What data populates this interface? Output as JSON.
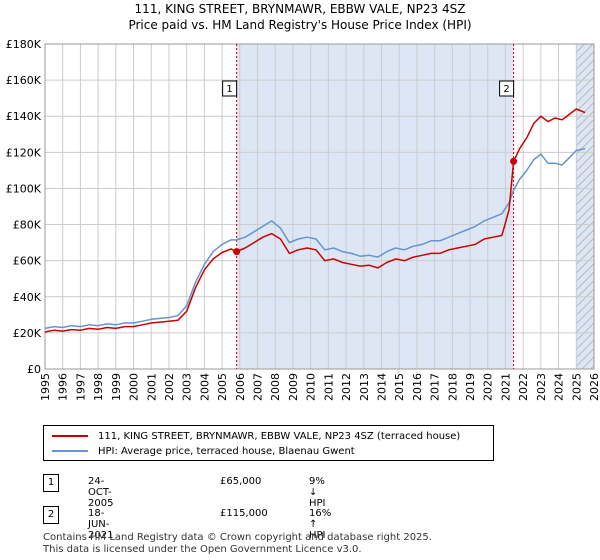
{
  "title_line1": "111, KING STREET, BRYNMAWR, EBBW VALE, NP23 4SZ",
  "title_line2": "Price paid vs. HM Land Registry's House Price Index (HPI)",
  "legend": {
    "series1_label": "111, KING STREET, BRYNMAWR, EBBW VALE, NP23 4SZ (terraced house)",
    "series2_label": "HPI: Average price, terraced house, Blaenau Gwent"
  },
  "sales": [
    {
      "num": "1",
      "date": "24-OCT-2005",
      "price": "£65,000",
      "hpi": "9% ↓ HPI"
    },
    {
      "num": "2",
      "date": "18-JUN-2021",
      "price": "£115,000",
      "hpi": "16% ↑ HPI"
    }
  ],
  "footer_line1": "Contains HM Land Registry data © Crown copyright and database right 2025.",
  "footer_line2": "This data is licensed under the Open Government Licence v3.0.",
  "colors": {
    "property": "#cc0000",
    "hpi": "#6495cd",
    "shade": "#dde6f4",
    "grid": "#cccccc"
  },
  "chart_data": {
    "type": "line",
    "title": "111, KING STREET, BRYNMAWR, EBBW VALE, NP23 4SZ — Price paid vs. HM Land Registry's House Price Index (HPI)",
    "xlabel": "",
    "ylabel": "",
    "xlim": [
      1995,
      2026
    ],
    "ylim": [
      0,
      180000
    ],
    "x_ticks": [
      1995,
      1996,
      1997,
      1998,
      1999,
      2000,
      2001,
      2002,
      2003,
      2004,
      2005,
      2006,
      2007,
      2008,
      2009,
      2010,
      2011,
      2012,
      2013,
      2014,
      2015,
      2016,
      2017,
      2018,
      2019,
      2020,
      2021,
      2022,
      2023,
      2024,
      2025,
      2026
    ],
    "y_ticks": [
      0,
      20000,
      40000,
      60000,
      80000,
      100000,
      120000,
      140000,
      160000,
      180000
    ],
    "y_tick_labels": [
      "£0",
      "£20K",
      "£40K",
      "£60K",
      "£80K",
      "£100K",
      "£120K",
      "£140K",
      "£160K",
      "£180K"
    ],
    "grid": true,
    "shaded_regions": [
      [
        2005.82,
        2021.46
      ],
      [
        2025.0,
        2026.0
      ]
    ],
    "hatched_region": [
      2025.0,
      2026.0
    ],
    "series": [
      {
        "name": "111, KING STREET, BRYNMAWR, EBBW VALE, NP23 4SZ (terraced house)",
        "x": [
          1995.0,
          1995.5,
          1996.0,
          1996.5,
          1997.0,
          1997.5,
          1998.0,
          1998.5,
          1999.0,
          1999.5,
          2000.0,
          2000.5,
          2001.0,
          2001.5,
          2002.0,
          2002.5,
          2003.0,
          2003.5,
          2004.0,
          2004.5,
          2005.0,
          2005.5,
          2005.82,
          2006.3,
          2006.8,
          2007.3,
          2007.8,
          2008.3,
          2008.8,
          2009.3,
          2009.8,
          2010.3,
          2010.8,
          2011.3,
          2011.8,
          2012.3,
          2012.8,
          2013.3,
          2013.8,
          2014.3,
          2014.8,
          2015.3,
          2015.8,
          2016.3,
          2016.8,
          2017.3,
          2017.8,
          2018.3,
          2018.8,
          2019.3,
          2019.8,
          2020.3,
          2020.8,
          2021.2,
          2021.46,
          2021.8,
          2022.2,
          2022.6,
          2023.0,
          2023.4,
          2023.8,
          2024.2,
          2024.6,
          2025.0,
          2025.5
        ],
        "values": [
          20500,
          21500,
          21000,
          21800,
          21500,
          22500,
          22000,
          23000,
          22500,
          23500,
          23500,
          24500,
          25500,
          26000,
          26500,
          27000,
          32000,
          45000,
          55000,
          61000,
          64500,
          66500,
          65000,
          67000,
          70000,
          73000,
          75000,
          72000,
          64000,
          66000,
          67000,
          66000,
          60000,
          61000,
          59000,
          58000,
          57000,
          57500,
          56000,
          59000,
          61000,
          60000,
          62000,
          63000,
          64000,
          64000,
          66000,
          67000,
          68000,
          69000,
          72000,
          73000,
          74000,
          88000,
          115000,
          122000,
          128000,
          136000,
          140000,
          137000,
          139000,
          138000,
          141000,
          144000,
          142000
        ]
      },
      {
        "name": "HPI: Average price, terraced house, Blaenau Gwent",
        "x": [
          1995.0,
          1995.5,
          1996.0,
          1996.5,
          1997.0,
          1997.5,
          1998.0,
          1998.5,
          1999.0,
          1999.5,
          2000.0,
          2000.5,
          2001.0,
          2001.5,
          2002.0,
          2002.5,
          2003.0,
          2003.5,
          2004.0,
          2004.5,
          2005.0,
          2005.5,
          2005.82,
          2006.3,
          2006.8,
          2007.3,
          2007.8,
          2008.3,
          2008.8,
          2009.3,
          2009.8,
          2010.3,
          2010.8,
          2011.3,
          2011.8,
          2012.3,
          2012.8,
          2013.3,
          2013.8,
          2014.3,
          2014.8,
          2015.3,
          2015.8,
          2016.3,
          2016.8,
          2017.3,
          2017.8,
          2018.3,
          2018.8,
          2019.3,
          2019.8,
          2020.3,
          2020.8,
          2021.2,
          2021.46,
          2021.8,
          2022.2,
          2022.6,
          2023.0,
          2023.4,
          2023.8,
          2024.2,
          2024.6,
          2025.0,
          2025.5
        ],
        "values": [
          22500,
          23500,
          23000,
          24000,
          23500,
          24500,
          24000,
          25000,
          24500,
          25500,
          25500,
          26500,
          27500,
          28000,
          28500,
          29500,
          35000,
          48000,
          58000,
          65000,
          69000,
          71500,
          71500,
          73000,
          76000,
          79000,
          82000,
          78000,
          70000,
          72000,
          73000,
          72000,
          66000,
          67000,
          65000,
          64000,
          62500,
          63000,
          62000,
          65000,
          67000,
          66000,
          68000,
          69000,
          71000,
          71000,
          73000,
          75000,
          77000,
          79000,
          82000,
          84000,
          86000,
          92000,
          99000,
          105000,
          110000,
          116000,
          119000,
          114000,
          114000,
          113000,
          117000,
          121000,
          122000
        ]
      }
    ],
    "annotations": [
      {
        "label": "1",
        "x": 2005.82,
        "y": 65000
      },
      {
        "label": "2",
        "x": 2021.46,
        "y": 115000
      }
    ]
  }
}
